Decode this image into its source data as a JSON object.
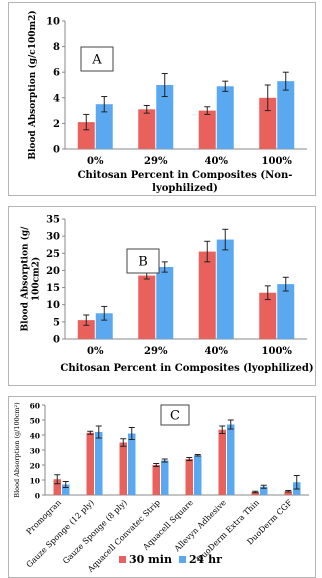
{
  "colors": {
    "series_30min": "#e8615c",
    "series_24hr": "#5aa8f0",
    "error_bar": "#222222"
  },
  "chart_data": [
    {
      "type": "bar",
      "panel_label": "A",
      "title": "",
      "ylabel": "Blood Absorption (g/c100m2)",
      "xlabel": "Chitosan Percent in Composites (Non-lyophilized)",
      "xlabel_lines": [
        "Chitosan Percent in Composites (Non-",
        "lyophilized)"
      ],
      "categories": [
        "0%",
        "29%",
        "40%",
        "100%"
      ],
      "ylim": [
        0,
        10
      ],
      "yticks": [
        0,
        2,
        4,
        6,
        8,
        10
      ],
      "series": [
        {
          "color_key": "series_30min",
          "values": [
            2.1,
            3.1,
            3.0,
            4.0
          ],
          "errors": [
            0.6,
            0.3,
            0.3,
            1.0
          ]
        },
        {
          "color_key": "series_24hr",
          "values": [
            3.5,
            5.0,
            4.9,
            5.3
          ],
          "errors": [
            0.6,
            0.9,
            0.4,
            0.7
          ]
        }
      ]
    },
    {
      "type": "bar",
      "panel_label": "B",
      "title": "",
      "ylabel": "Blood Absorption (g/ 100cm2)",
      "ylabel_lines": [
        "Blood Absorption (g/",
        "100cm2)"
      ],
      "xlabel": "Chitosan Percent in Composites (lyophilized)",
      "categories": [
        "0%",
        "29%",
        "40%",
        "100%"
      ],
      "ylim": [
        0,
        35
      ],
      "yticks": [
        0,
        5,
        10,
        15,
        20,
        25,
        30,
        35
      ],
      "series": [
        {
          "color_key": "series_30min",
          "values": [
            5.5,
            18.5,
            25.5,
            13.5
          ],
          "errors": [
            1.5,
            1.0,
            3.0,
            2.0
          ]
        },
        {
          "color_key": "series_24hr",
          "values": [
            7.5,
            21.0,
            29.0,
            16.0
          ],
          "errors": [
            2.0,
            1.5,
            3.0,
            2.0
          ]
        }
      ]
    },
    {
      "type": "bar",
      "panel_label": "C",
      "title": "",
      "ylabel": "Blood Absorption (g/100cm²)",
      "xlabel": "",
      "categories": [
        "Promogran",
        "Gauze Sponge (12 ply)",
        "Gauze Sponge (8 ply)",
        "Aquacell Convatec Strip",
        "Aquacell Square",
        "Allevyn Adhesive",
        "DuoDerm Extra Thin",
        "DuoDerm CGF"
      ],
      "ylim": [
        0,
        60
      ],
      "yticks": [
        0,
        10,
        20,
        30,
        40,
        50,
        60
      ],
      "legend_position": "bottom",
      "series": [
        {
          "name": "30 min",
          "color_key": "series_30min",
          "values": [
            10.5,
            41.5,
            35.0,
            20.0,
            24.0,
            43.5,
            2.0,
            2.5
          ],
          "errors": [
            3.0,
            1.0,
            2.5,
            1.0,
            1.0,
            2.5,
            0.5,
            0.5
          ]
        },
        {
          "name": "24 hr",
          "color_key": "series_24hr",
          "values": [
            7.0,
            42.0,
            41.0,
            23.0,
            26.5,
            47.0,
            5.5,
            8.5
          ],
          "errors": [
            2.0,
            4.0,
            4.0,
            1.0,
            0.5,
            3.0,
            1.0,
            4.5
          ]
        }
      ]
    }
  ]
}
